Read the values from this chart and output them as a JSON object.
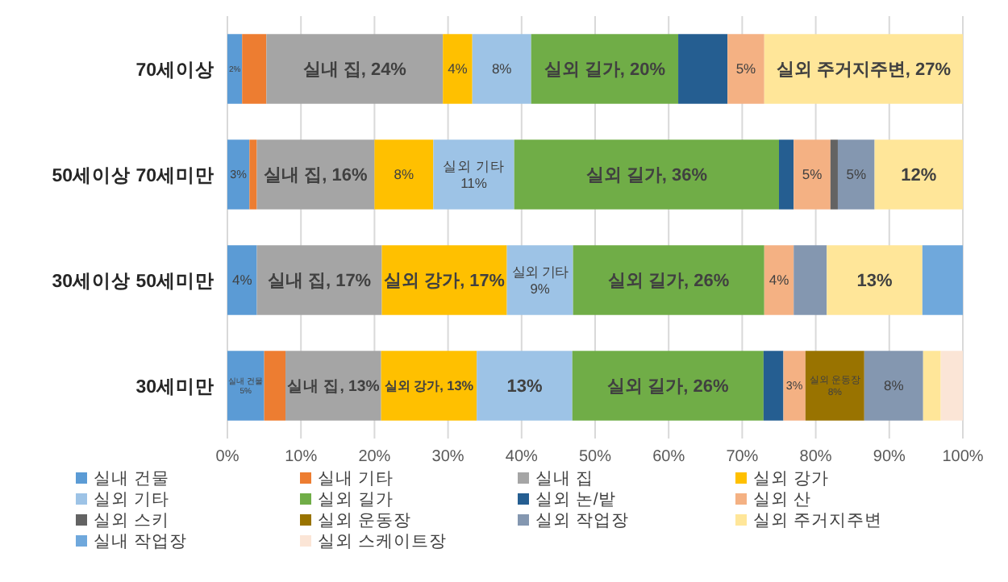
{
  "chart_data": {
    "type": "bar",
    "orientation": "horizontal",
    "stacked": true,
    "categories": [
      "70세이상",
      "50세이상 70세미만",
      "30세이상 50세미만",
      "30세미만"
    ],
    "series": [
      {
        "name": "실내 건물",
        "color": "#5b9bd5",
        "values": [
          2,
          3,
          4,
          5
        ],
        "value_labels": [
          "2%",
          "3%",
          "4%",
          "실내 건물\n5%"
        ]
      },
      {
        "name": "실내 기타",
        "color": "#ed7d31",
        "values": [
          3.3,
          1,
          null,
          2.9
        ]
      },
      {
        "name": "실내 집",
        "color": "#a5a5a5",
        "values": [
          24,
          16,
          17,
          13
        ],
        "value_labels": [
          "실내 집, 24%",
          "실내 집, 16%",
          "실내 집, 17%",
          "실내 집, 13%"
        ]
      },
      {
        "name": "실외 강가",
        "color": "#ffc000",
        "values": [
          4,
          8,
          17,
          13
        ],
        "value_labels": [
          "4%",
          "8%",
          "실외 강가, 17%",
          "실외 강가, 13%"
        ]
      },
      {
        "name": "실외 기타",
        "color": "#9dc3e6",
        "values": [
          8,
          11,
          9,
          13
        ],
        "value_labels": [
          "8%",
          "실외 기타\n11%",
          "실외 기타\n9%",
          "13%"
        ]
      },
      {
        "name": "실외 길가",
        "color": "#70ad47",
        "values": [
          20,
          36,
          26,
          26
        ],
        "value_labels": [
          "실외 길가, 20%",
          "실외 길가, 36%",
          "실외 길가, 26%",
          "실외 길가, 26%"
        ]
      },
      {
        "name": "실외 논/밭",
        "color": "#255e91",
        "values": [
          6.7,
          2,
          null,
          2.7
        ]
      },
      {
        "name": "실외 산",
        "color": "#f4b183",
        "values": [
          5,
          5,
          4,
          3
        ],
        "value_labels": [
          "5%",
          "5%",
          "4%",
          "3%"
        ]
      },
      {
        "name": "실외 스키",
        "color": "#636363",
        "values": [
          null,
          1,
          null,
          null
        ]
      },
      {
        "name": "실외 운동장",
        "color": "#997300",
        "values": [
          null,
          null,
          null,
          8
        ],
        "value_labels": [
          null,
          null,
          null,
          "실외 운동장\n8%"
        ]
      },
      {
        "name": "실외 작업장",
        "color": "#8497b0",
        "values": [
          null,
          5,
          4.5,
          8
        ],
        "value_labels": [
          null,
          "5%",
          null,
          "8%"
        ]
      },
      {
        "name": "실외 주거지주변",
        "color": "#ffe699",
        "values": [
          27,
          12,
          13,
          2.4
        ],
        "value_labels": [
          "실외 주거지주변, 27%",
          "12%",
          "13%",
          null
        ]
      },
      {
        "name": "실내 작업장",
        "color": "#6fa8dc",
        "values": [
          null,
          null,
          5.5,
          null
        ]
      },
      {
        "name": "실외 스케이트장",
        "color": "#fbe5d6",
        "values": [
          null,
          null,
          null,
          3.0
        ]
      }
    ],
    "xlim": [
      0,
      100
    ],
    "xticks": [
      {
        "value": 0,
        "label": "0%"
      },
      {
        "value": 10,
        "label": "10%"
      },
      {
        "value": 20,
        "label": "20%"
      },
      {
        "value": 30,
        "label": "30%"
      },
      {
        "value": 40,
        "label": "40%"
      },
      {
        "value": 50,
        "label": "50%"
      },
      {
        "value": 60,
        "label": "60%"
      },
      {
        "value": 70,
        "label": "70%"
      },
      {
        "value": 80,
        "label": "80%"
      },
      {
        "value": 90,
        "label": "90%"
      },
      {
        "value": 100,
        "label": "100%"
      }
    ],
    "grid": "x",
    "legend": "bottom"
  }
}
